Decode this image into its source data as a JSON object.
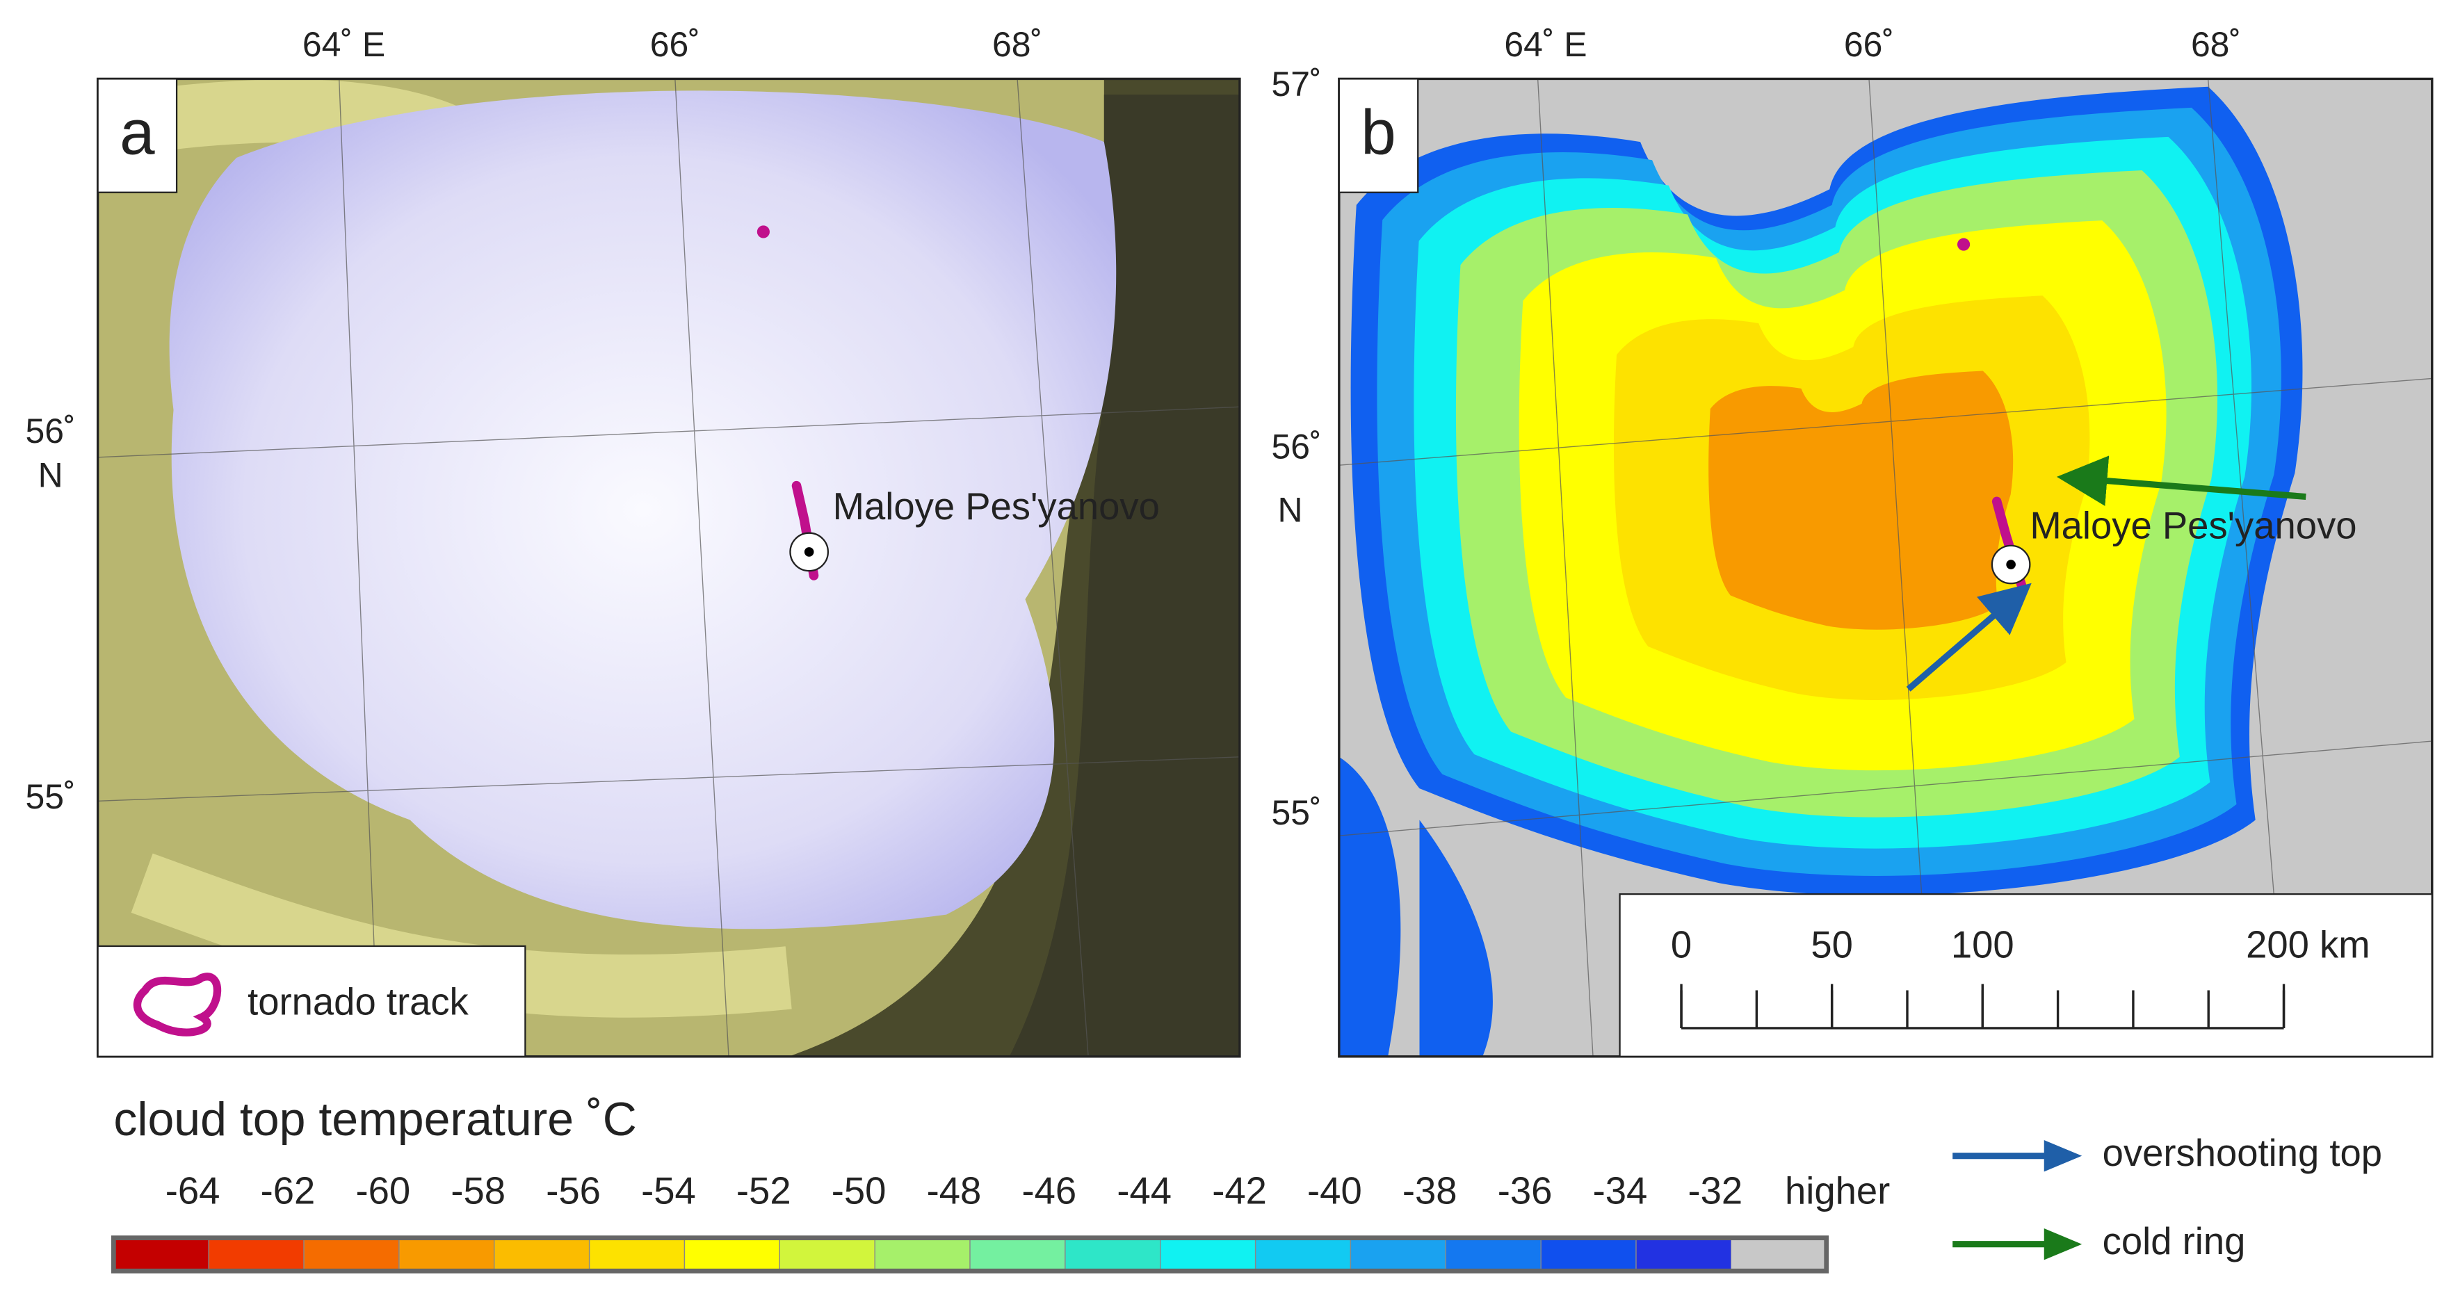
{
  "panels": [
    {
      "label": "a",
      "lon_labels": [
        "64˚ E",
        "66˚",
        "68˚"
      ],
      "lat_labels": [
        "56˚",
        "N",
        "55˚"
      ],
      "place": "Maloye Pes'yanovo",
      "legend": "tornado track"
    },
    {
      "label": "b",
      "lon_labels": [
        "64˚ E",
        "66˚",
        "68˚"
      ],
      "lat_labels": [
        "57˚",
        "56˚",
        "N",
        "55˚"
      ],
      "place": "Maloye Pes'yanovo",
      "scale_bar": {
        "ticks": [
          0,
          50,
          100,
          {
            "value": 200,
            "label": "200 km"
          }
        ]
      }
    }
  ],
  "colorbar": {
    "title": "cloud top temperature ˚C",
    "ticks": [
      -64,
      -62,
      -60,
      -58,
      -56,
      -54,
      -52,
      -50,
      -48,
      -46,
      -44,
      -42,
      -40,
      -38,
      -36,
      -34,
      -32
    ],
    "colors": [
      "#c40000",
      "#f23c00",
      "#f56c00",
      "#f89a00",
      "#fbbc00",
      "#fde200",
      "#ffff00",
      "#d2f53c",
      "#a6f06a",
      "#74f0a0",
      "#2ee6c8",
      "#10f2f2",
      "#12caf2",
      "#1aa2f0",
      "#1478f0",
      "#1050ee",
      "#2232e2"
    ],
    "higher_label": "higher",
    "higher_color": "#c8c8c8"
  },
  "arrows": [
    {
      "label": "overshooting top",
      "color": "#1f5fa8"
    },
    {
      "label": "cold ring",
      "color": "#1a7a1a"
    }
  ]
}
